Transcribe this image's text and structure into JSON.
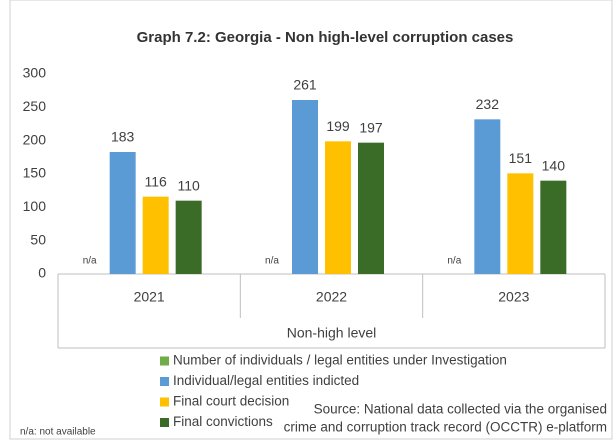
{
  "chart_data": {
    "type": "bar",
    "title": "Graph 7.2: Georgia - Non high-level corruption cases",
    "categories": [
      "2021",
      "2022",
      "2023"
    ],
    "x_group_label": "Non-high level",
    "series": [
      {
        "name": "Number of individuals / legal entities under Investigation",
        "color": "#70ad47",
        "values": [
          null,
          null,
          null
        ],
        "value_labels": [
          "n/a",
          "n/a",
          "n/a"
        ]
      },
      {
        "name": "Individual/legal entities indicted",
        "color": "#5b9bd5",
        "values": [
          183,
          261,
          232
        ]
      },
      {
        "name": "Final court decision",
        "color": "#ffc000",
        "values": [
          116,
          199,
          151
        ]
      },
      {
        "name": "Final convictions",
        "color": "#3a6b27",
        "values": [
          110,
          197,
          140
        ]
      }
    ],
    "ylim": [
      0,
      300
    ],
    "yticks": [
      0,
      50,
      100,
      150,
      200,
      250,
      300
    ],
    "grid": false,
    "legend": "bottom",
    "source": [
      "Source: National data collected via the organised",
      "crime and corruption track record (OCCTR) e-platform"
    ],
    "footnote": "n/a: not available"
  }
}
